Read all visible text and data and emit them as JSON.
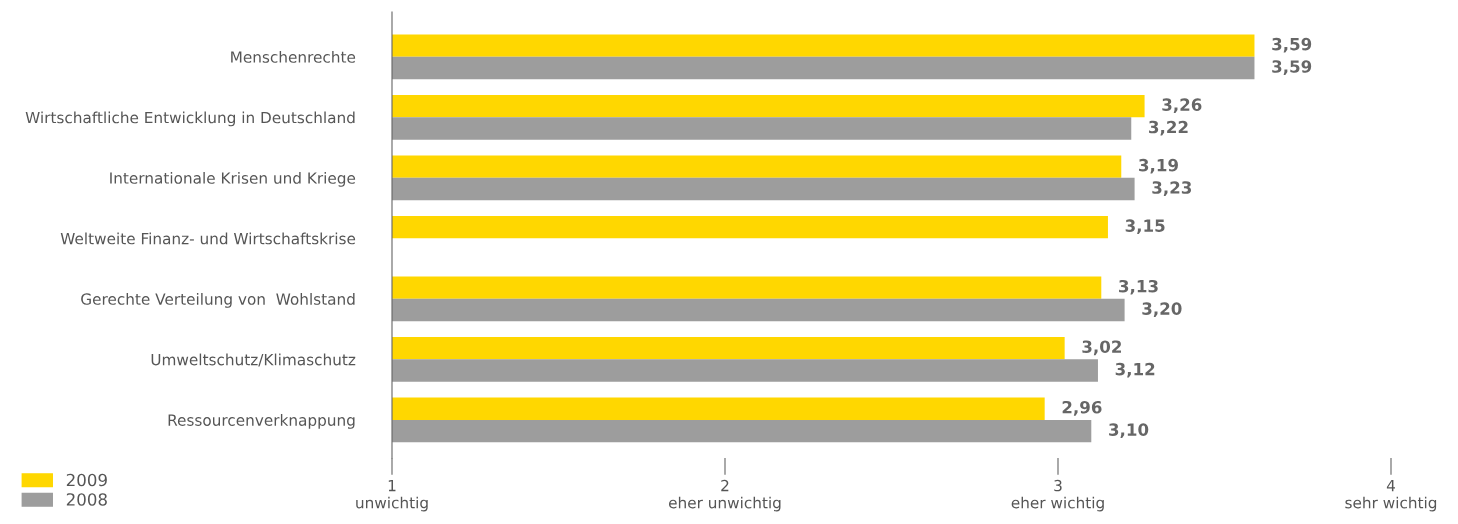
{
  "chart_data": {
    "type": "bar",
    "orientation": "horizontal",
    "categories": [
      "Menschenrechte",
      "Wirtschaftliche Entwicklung in Deutschland",
      "Internationale Krisen und Kriege",
      "Weltweite Finanz- und Wirtschaftskrise",
      "Gerechte Verteilung von  Wohlstand",
      "Umweltschutz/Klimaschutz",
      "Ressourcenverknappung"
    ],
    "series": [
      {
        "name": "2009",
        "color": "#ffd700",
        "values": [
          3.59,
          3.26,
          3.19,
          3.15,
          3.13,
          3.02,
          2.96
        ],
        "value_labels": [
          "3,59",
          "3,26",
          "3,19",
          "3,15",
          "3,13",
          "3,02",
          "2,96"
        ]
      },
      {
        "name": "2008",
        "color": "#9d9d9d",
        "values": [
          3.59,
          3.22,
          3.23,
          null,
          3.2,
          3.12,
          3.1
        ],
        "value_labels": [
          "3,59",
          "3,22",
          "3,23",
          null,
          "3,20",
          "3,12",
          "3,10"
        ]
      }
    ],
    "xlim": [
      1,
      4
    ],
    "xticks": [
      {
        "value": 1,
        "label": "1\nunwichtig"
      },
      {
        "value": 2,
        "label": "2\neher unwichtig"
      },
      {
        "value": 3,
        "label": "3\neher wichtig"
      },
      {
        "value": 4,
        "label": "4\nsehr wichtig"
      }
    ],
    "grid": false,
    "legend": "bottom left"
  }
}
